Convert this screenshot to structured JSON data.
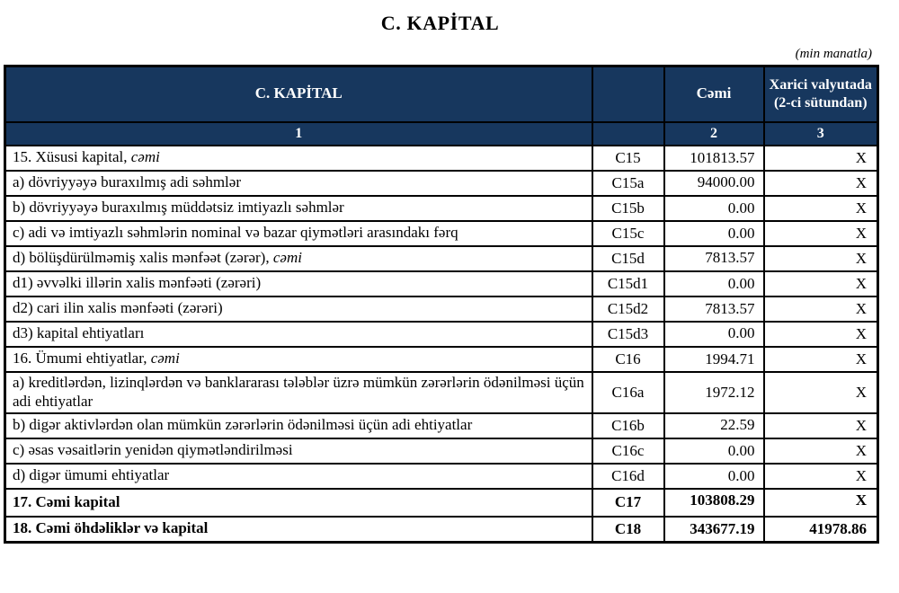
{
  "page": {
    "title": "C. KAPİTAL",
    "unit_note": "(min manatla)"
  },
  "colors": {
    "header_bg": "#17375E",
    "header_text": "#FFFFFF",
    "border": "#000000"
  },
  "table": {
    "header": {
      "label": "C. KAPİTAL",
      "code": "",
      "total": "Cəmi",
      "foreign": "Xarici valyutada (2-ci sütundan)",
      "index_label": "1",
      "index_code": "",
      "index_total": "2",
      "index_foreign": "3"
    },
    "rows": [
      {
        "label": "15. Xüsusi kapital, ",
        "italic": "cəmi",
        "code": "C15",
        "total": "101813.57",
        "foreign": "X"
      },
      {
        "label": "a) dövriyyəyə buraxılmış adi səhmlər",
        "italic": "",
        "code": "C15a",
        "total": "94000.00",
        "foreign": "X"
      },
      {
        "label": "b) dövriyyəyə buraxılmış müddətsiz imtiyazlı səhmlər",
        "italic": "",
        "code": "C15b",
        "total": "0.00",
        "foreign": "X"
      },
      {
        "label": "c) adi və imtiyazlı səhmlərin nominal və bazar qiymətləri arasındakı fərq",
        "italic": "",
        "code": "C15c",
        "total": "0.00",
        "foreign": "X"
      },
      {
        "label": "d) bölüşdürülməmiş xalis mənfəət (zərər), ",
        "italic": "cəmi",
        "code": "C15d",
        "total": "7813.57",
        "foreign": "X"
      },
      {
        "label": "d1) əvvəlki illərin xalis mənfəəti (zərəri)",
        "italic": "",
        "code": "C15d1",
        "total": "0.00",
        "foreign": "X"
      },
      {
        "label": "d2) cari ilin xalis mənfəəti (zərəri)",
        "italic": "",
        "code": "C15d2",
        "total": "7813.57",
        "foreign": "X"
      },
      {
        "label": "d3) kapital ehtiyatları",
        "italic": "",
        "code": "C15d3",
        "total": "0.00",
        "foreign": "X"
      },
      {
        "label": "16. Ümumi ehtiyatlar, ",
        "italic": "cəmi",
        "code": "C16",
        "total": "1994.71",
        "foreign": "X"
      },
      {
        "label": "a) kreditlərdən, lizinqlərdən və banklararası  tələblər üzrə mümkün zərərlərin ödənilməsi üçün adi ehtiyatlar",
        "italic": "",
        "code": "C16a",
        "total": "1972.12",
        "foreign": "X"
      },
      {
        "label": "b) digər aktivlərdən olan mümkün zərərlərin ödənilməsi üçün adi ehtiyatlar",
        "italic": "",
        "code": "C16b",
        "total": "22.59",
        "foreign": "X"
      },
      {
        "label": "c) əsas vəsaitlərin yenidən qiymətləndirilməsi",
        "italic": "",
        "code": "C16c",
        "total": "0.00",
        "foreign": "X"
      },
      {
        "label": "d) digər ümumi ehtiyatlar",
        "italic": "",
        "code": "C16d",
        "total": "0.00",
        "foreign": "X"
      },
      {
        "label": "17. Cəmi kapital",
        "italic": "",
        "code": "C17",
        "total": "103808.29",
        "foreign": "X"
      },
      {
        "label": "18. Cəmi öhdəliklər və kapital",
        "italic": "",
        "code": "C18",
        "total": "343677.19",
        "foreign": "41978.86"
      }
    ]
  }
}
